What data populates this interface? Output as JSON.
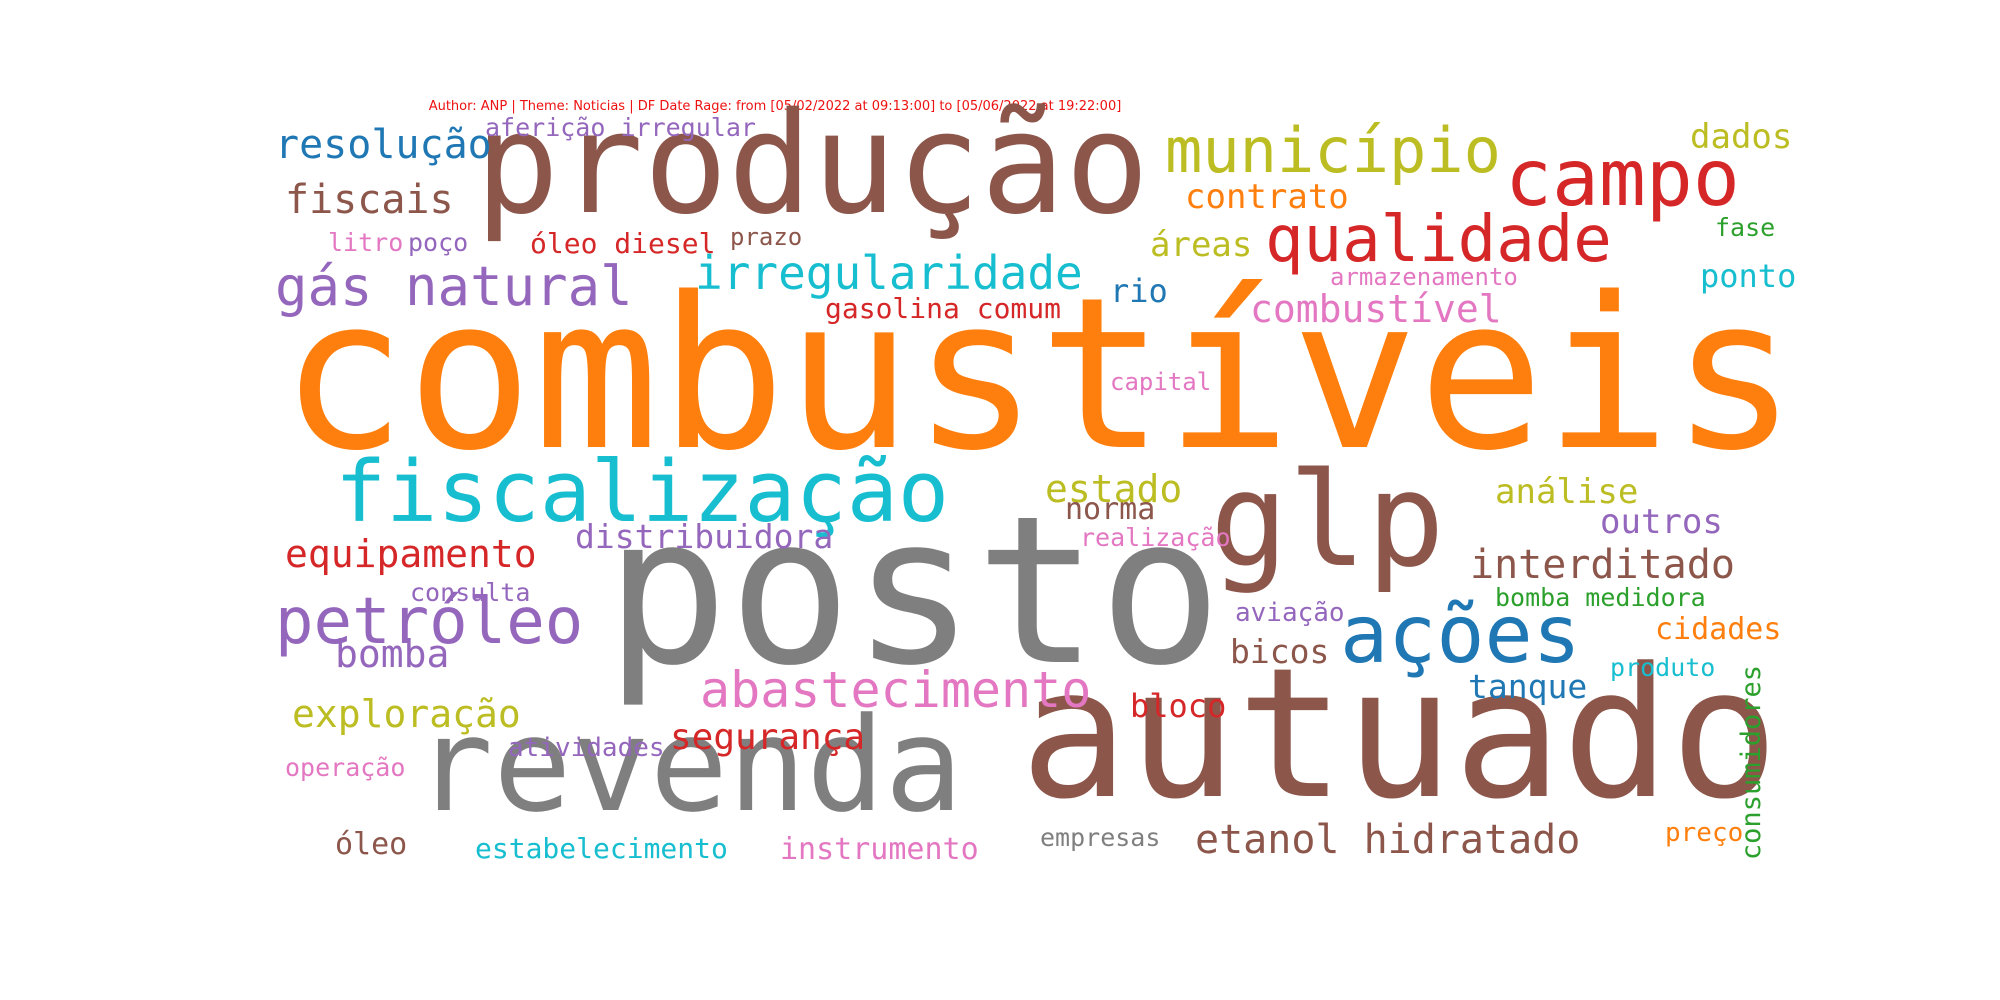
{
  "caption": "Author: ANP | Theme: Noticias | DF Date Rage: from [05/02/2022 at 09:13:00] to [05/06/2022 at 19:22:00]",
  "colors": {
    "blue": "#1f77b4",
    "orange": "#ff7f0e",
    "green": "#2ca02c",
    "red": "#d62728",
    "purple": "#9467bd",
    "brown": "#8c564b",
    "pink": "#e377c2",
    "gray": "#7f7f7f",
    "olive": "#bcbd22",
    "cyan": "#17becf"
  },
  "words": [
    {
      "text": "combustíveis",
      "color": "orange"
    },
    {
      "text": "posto",
      "color": "gray"
    },
    {
      "text": "autuado",
      "color": "brown"
    },
    {
      "text": "produção",
      "color": "brown"
    },
    {
      "text": "revenda",
      "color": "gray"
    },
    {
      "text": "glp",
      "color": "brown"
    },
    {
      "text": "fiscalização",
      "color": "cyan"
    },
    {
      "text": "ações",
      "color": "blue"
    },
    {
      "text": "campo",
      "color": "red"
    },
    {
      "text": "qualidade",
      "color": "red"
    },
    {
      "text": "município",
      "color": "olive"
    },
    {
      "text": "petróleo",
      "color": "purple"
    },
    {
      "text": "gás natural",
      "color": "purple"
    },
    {
      "text": "abastecimento",
      "color": "pink"
    },
    {
      "text": "irregularidade",
      "color": "cyan"
    },
    {
      "text": "interditado",
      "color": "brown"
    },
    {
      "text": "etanol hidratado",
      "color": "brown"
    },
    {
      "text": "resolução",
      "color": "blue"
    },
    {
      "text": "fiscais",
      "color": "brown"
    },
    {
      "text": "equipamento",
      "color": "red"
    },
    {
      "text": "exploração",
      "color": "olive"
    },
    {
      "text": "bomba",
      "color": "purple"
    },
    {
      "text": "combustível",
      "color": "pink"
    },
    {
      "text": "estado",
      "color": "olive"
    },
    {
      "text": "contrato",
      "color": "orange"
    },
    {
      "text": "áreas",
      "color": "olive"
    },
    {
      "text": "dados",
      "color": "olive"
    },
    {
      "text": "segurança",
      "color": "red"
    },
    {
      "text": "distribuidora",
      "color": "purple"
    },
    {
      "text": "análise",
      "color": "olive"
    },
    {
      "text": "outros",
      "color": "purple"
    },
    {
      "text": "bicos",
      "color": "brown"
    },
    {
      "text": "tanque",
      "color": "blue"
    },
    {
      "text": "bloco",
      "color": "red"
    },
    {
      "text": "rio",
      "color": "blue"
    },
    {
      "text": "ponto",
      "color": "cyan"
    },
    {
      "text": "cidades",
      "color": "orange"
    },
    {
      "text": "norma",
      "color": "brown"
    },
    {
      "text": "instrumento",
      "color": "pink"
    },
    {
      "text": "óleo",
      "color": "brown"
    },
    {
      "text": "estabelecimento",
      "color": "cyan"
    },
    {
      "text": "gasolina comum",
      "color": "red"
    },
    {
      "text": "óleo diesel",
      "color": "red"
    },
    {
      "text": "aferição irregular",
      "color": "purple"
    },
    {
      "text": "bomba medidora",
      "color": "green"
    },
    {
      "text": "consumidores",
      "color": "green"
    },
    {
      "text": "atividades",
      "color": "purple"
    },
    {
      "text": "empresas",
      "color": "gray"
    },
    {
      "text": "aviação",
      "color": "purple"
    },
    {
      "text": "produto",
      "color": "cyan"
    },
    {
      "text": "preço",
      "color": "orange"
    },
    {
      "text": "operação",
      "color": "pink"
    },
    {
      "text": "consulta",
      "color": "purple"
    },
    {
      "text": "realização",
      "color": "pink"
    },
    {
      "text": "capital",
      "color": "pink"
    },
    {
      "text": "armazenamento",
      "color": "pink"
    },
    {
      "text": "fase",
      "color": "green"
    },
    {
      "text": "prazo",
      "color": "brown"
    },
    {
      "text": "poço",
      "color": "purple"
    },
    {
      "text": "litro",
      "color": "pink"
    }
  ]
}
